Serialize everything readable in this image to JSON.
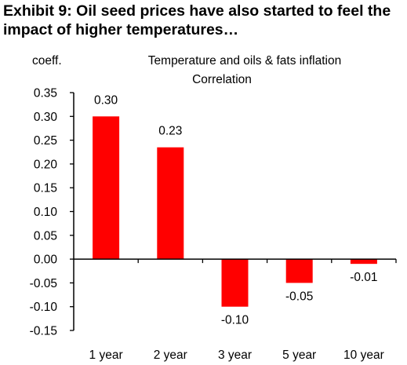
{
  "exhibit_title": "Exhibit 9: Oil seed prices have also started to feel the impact of higher temperatures…",
  "colors": {
    "bar": "#ff0000",
    "axis": "#000000",
    "text": "#000000"
  },
  "chart_data": {
    "type": "bar",
    "title": "Temperature and oils & fats inflation",
    "subtitle": "Correlation",
    "ylabel": "coeff.",
    "xlabel": "",
    "categories": [
      "1 year",
      "2 year",
      "3 year",
      "5 year",
      "10 year"
    ],
    "values": [
      0.3,
      0.235,
      -0.1,
      -0.05,
      -0.01
    ],
    "data_labels": [
      "0.30",
      "0.23",
      "-0.10",
      "-0.05",
      "-0.01"
    ],
    "ylim": [
      -0.15,
      0.35
    ],
    "yticks": [
      0.35,
      0.3,
      0.25,
      0.2,
      0.15,
      0.1,
      0.05,
      0.0,
      -0.05,
      -0.1,
      -0.15
    ],
    "ytick_labels": [
      "0.35",
      "0.30",
      "0.25",
      "0.20",
      "0.15",
      "0.10",
      "0.05",
      "0.00",
      "-0.05",
      "-0.10",
      "-0.15"
    ],
    "grid": false,
    "legend": "none"
  }
}
